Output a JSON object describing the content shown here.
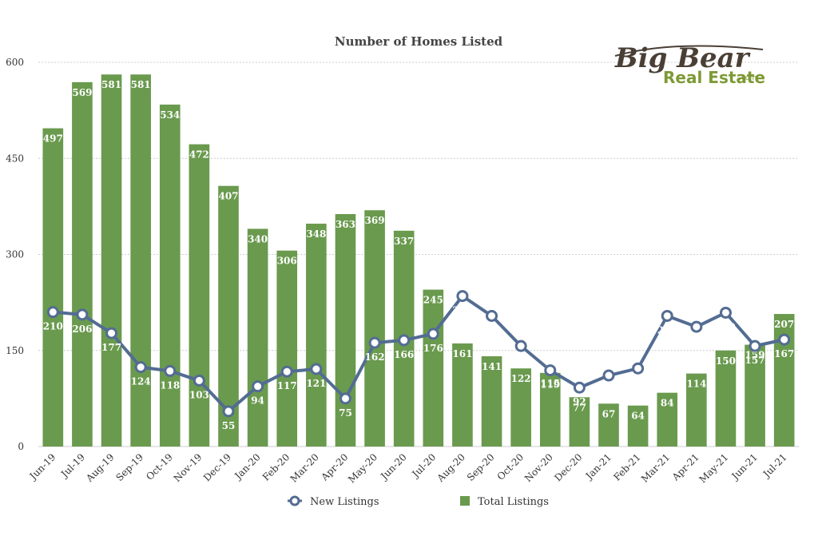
{
  "logo": {
    "big_bear": "Big Bear",
    "real_estate": "Real Estate",
    "dotcom": ".com"
  },
  "colors": {
    "bars": "#6a9a4e",
    "line": "#536c92",
    "grid": "#cccccc"
  },
  "chart_data": {
    "type": "bar",
    "title": "Number of Homes Listed",
    "xlabel": "",
    "ylabel": "",
    "ylim": [
      0,
      600
    ],
    "yticks": [
      0,
      150,
      300,
      450,
      600
    ],
    "grid": true,
    "legend_position": "bottom",
    "categories": [
      "Jun-19",
      "Jul-19",
      "Aug-19",
      "Sep-19",
      "Oct-19",
      "Nov-19",
      "Dec-19",
      "Jan-20",
      "Feb-20",
      "Mar-20",
      "Apr-20",
      "May-20",
      "Jun-20",
      "Jul-20",
      "Aug-20",
      "Sep-20",
      "Oct-20",
      "Nov-20",
      "Dec-20",
      "Jan-21",
      "Feb-21",
      "Mar-21",
      "Apr-21",
      "May-21",
      "Jun-21",
      "Jul-21"
    ],
    "series": [
      {
        "name": "Total Listings",
        "type": "bar",
        "values": [
          497,
          569,
          581,
          581,
          534,
          472,
          407,
          340,
          306,
          348,
          363,
          369,
          337,
          245,
          161,
          141,
          122,
          115,
          77,
          67,
          64,
          84,
          114,
          150,
          159,
          207
        ]
      },
      {
        "name": "New Listings",
        "type": "line",
        "values": [
          210,
          206,
          177,
          124,
          118,
          103,
          55,
          94,
          117,
          121,
          75,
          162,
          166,
          176,
          235,
          204,
          157,
          119,
          92,
          111,
          122,
          204,
          187,
          209,
          157,
          167
        ]
      }
    ]
  }
}
